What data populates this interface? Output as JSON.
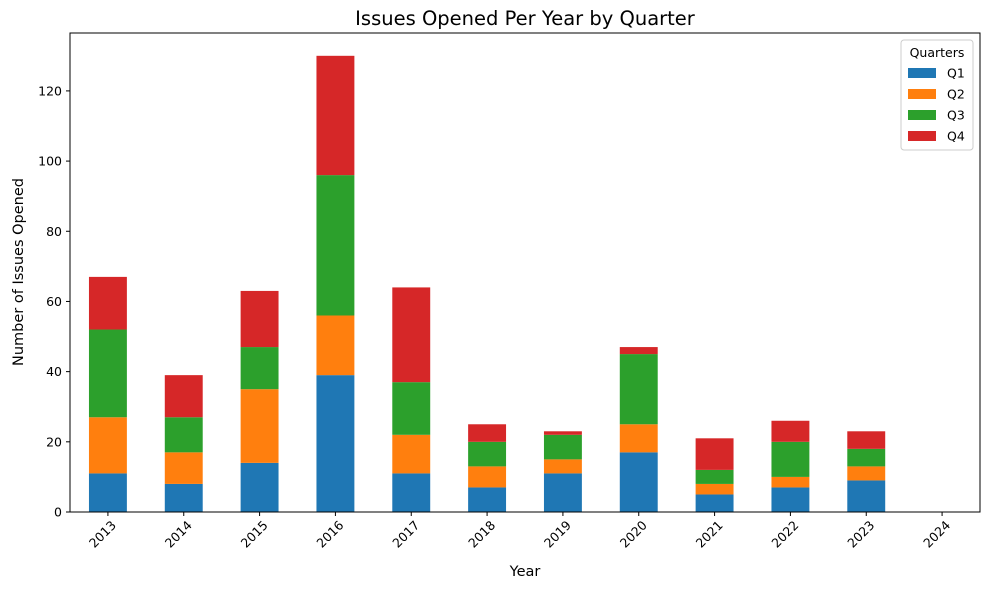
{
  "chart_data": {
    "type": "bar",
    "stacked": true,
    "title": "Issues Opened Per Year by Quarter",
    "xlabel": "Year",
    "ylabel": "Number of Issues Opened",
    "categories": [
      "2013",
      "2014",
      "2015",
      "2016",
      "2017",
      "2018",
      "2019",
      "2020",
      "2021",
      "2022",
      "2023",
      "2024"
    ],
    "ylim": [
      0,
      136.5
    ],
    "yticks": [
      0,
      20,
      40,
      60,
      80,
      100,
      120
    ],
    "grid": false,
    "legend": {
      "title": "Quarters",
      "placement": "top-right"
    },
    "series": [
      {
        "name": "Q1",
        "color": "#1f77b4",
        "values": [
          11,
          8,
          14,
          39,
          11,
          7,
          11,
          17,
          5,
          7,
          9,
          0
        ]
      },
      {
        "name": "Q2",
        "color": "#ff7f0e",
        "values": [
          16,
          9,
          21,
          17,
          11,
          6,
          4,
          8,
          3,
          3,
          4,
          0
        ]
      },
      {
        "name": "Q3",
        "color": "#2ca02c",
        "values": [
          25,
          10,
          12,
          40,
          15,
          7,
          7,
          20,
          4,
          10,
          5,
          0
        ]
      },
      {
        "name": "Q4",
        "color": "#d62728",
        "values": [
          15,
          12,
          16,
          34,
          27,
          5,
          1,
          2,
          9,
          6,
          5,
          0
        ]
      }
    ]
  }
}
